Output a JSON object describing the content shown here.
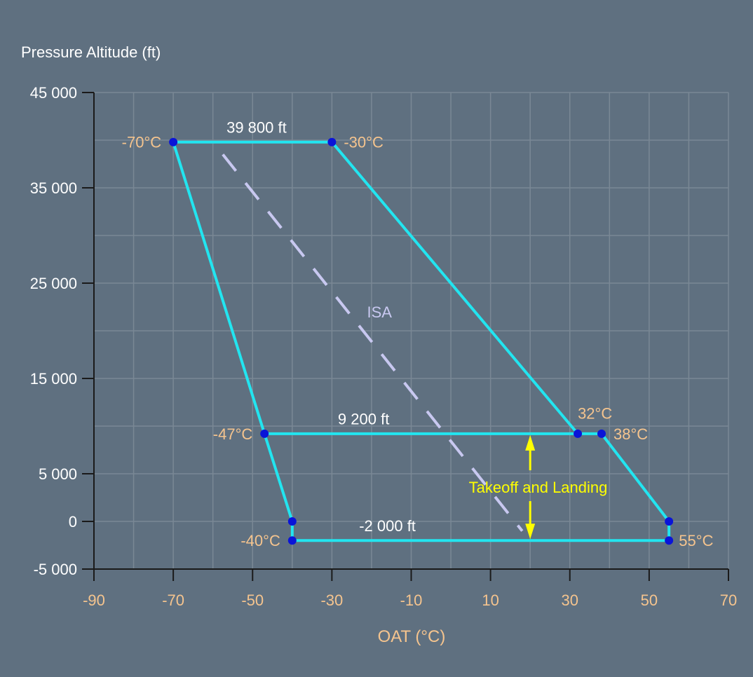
{
  "colors": {
    "background": "#5f7080",
    "grid": "#7a8895",
    "axis": "#1a1a1a",
    "envelope": "#22e5f0",
    "point": "#0a14d8",
    "isa": "#c8c8f0",
    "temp_label": "#f5c48e",
    "text": "#ffffff",
    "takeoff": "#ffff00"
  },
  "chart_data": {
    "type": "line",
    "ylabel": "Pressure Altitude (ft)",
    "xlabel": "OAT (°C)",
    "xlim": [
      -90,
      70
    ],
    "ylim": [
      -5000,
      45000
    ],
    "grid": true,
    "y_ticks": [
      {
        "value": 45000,
        "label": "45 000"
      },
      {
        "value": 35000,
        "label": "35 000"
      },
      {
        "value": 25000,
        "label": "25 000"
      },
      {
        "value": 15000,
        "label": "15 000"
      },
      {
        "value": 5000,
        "label": "5 000"
      },
      {
        "value": 0,
        "label": "0"
      },
      {
        "value": -5000,
        "label": "-5 000"
      }
    ],
    "x_ticks": [
      {
        "value": -90,
        "label": "-90"
      },
      {
        "value": -70,
        "label": "-70"
      },
      {
        "value": -50,
        "label": "-50"
      },
      {
        "value": -30,
        "label": "-30"
      },
      {
        "value": -10,
        "label": "-10"
      },
      {
        "value": 10,
        "label": "10"
      },
      {
        "value": 30,
        "label": "30"
      },
      {
        "value": 50,
        "label": "50"
      },
      {
        "value": 70,
        "label": "70"
      }
    ],
    "envelope": [
      {
        "x": -70,
        "y": 39800
      },
      {
        "x": -30,
        "y": 39800
      },
      {
        "x": 32,
        "y": 9200
      },
      {
        "x": 38,
        "y": 9200
      },
      {
        "x": 55,
        "y": 0
      },
      {
        "x": 55,
        "y": -2000
      },
      {
        "x": -40,
        "y": -2000
      },
      {
        "x": -40,
        "y": 0
      },
      {
        "x": -47,
        "y": 9200
      },
      {
        "x": -70,
        "y": 39800
      }
    ],
    "takeoff_landing_line": [
      {
        "x": -47,
        "y": 9200
      },
      {
        "x": 32,
        "y": 9200
      }
    ],
    "points": [
      {
        "x": -70,
        "y": 39800
      },
      {
        "x": -30,
        "y": 39800
      },
      {
        "x": 32,
        "y": 9200
      },
      {
        "x": 38,
        "y": 9200
      },
      {
        "x": 55,
        "y": 0
      },
      {
        "x": 55,
        "y": -2000
      },
      {
        "x": -40,
        "y": -2000
      },
      {
        "x": -40,
        "y": 0
      },
      {
        "x": -47,
        "y": 9200
      }
    ],
    "isa_line": [
      {
        "x": -57.5,
        "y": 38500
      },
      {
        "x": 18,
        "y": -1000
      }
    ],
    "annotations": {
      "alt_top": {
        "text": "39 800 ft",
        "x": -49,
        "y": 41300
      },
      "alt_mid": {
        "text": "9 200 ft",
        "x": -22,
        "y": 10700
      },
      "alt_low": {
        "text": "-2 000 ft",
        "x": -16,
        "y": -500
      },
      "isa": {
        "text": "ISA",
        "x": -18,
        "y": 22000
      },
      "takeoff": {
        "text": "Takeoff and Landing",
        "x": 22,
        "y": 3600
      },
      "t_m70": {
        "text": "-70°C",
        "x": -73,
        "y": 39800
      },
      "t_m30": {
        "text": "-30°C",
        "x": -27,
        "y": 39800
      },
      "t_32": {
        "text": "32°C",
        "x": 32,
        "y": 11300
      },
      "t_38": {
        "text": "38°C",
        "x": 41,
        "y": 9200
      },
      "t_m47": {
        "text": "-47°C",
        "x": -50,
        "y": 9200
      },
      "t_m40": {
        "text": "-40°C",
        "x": -43,
        "y": -2000
      },
      "t_55": {
        "text": "55°C",
        "x": 57.5,
        "y": -2000
      }
    }
  }
}
